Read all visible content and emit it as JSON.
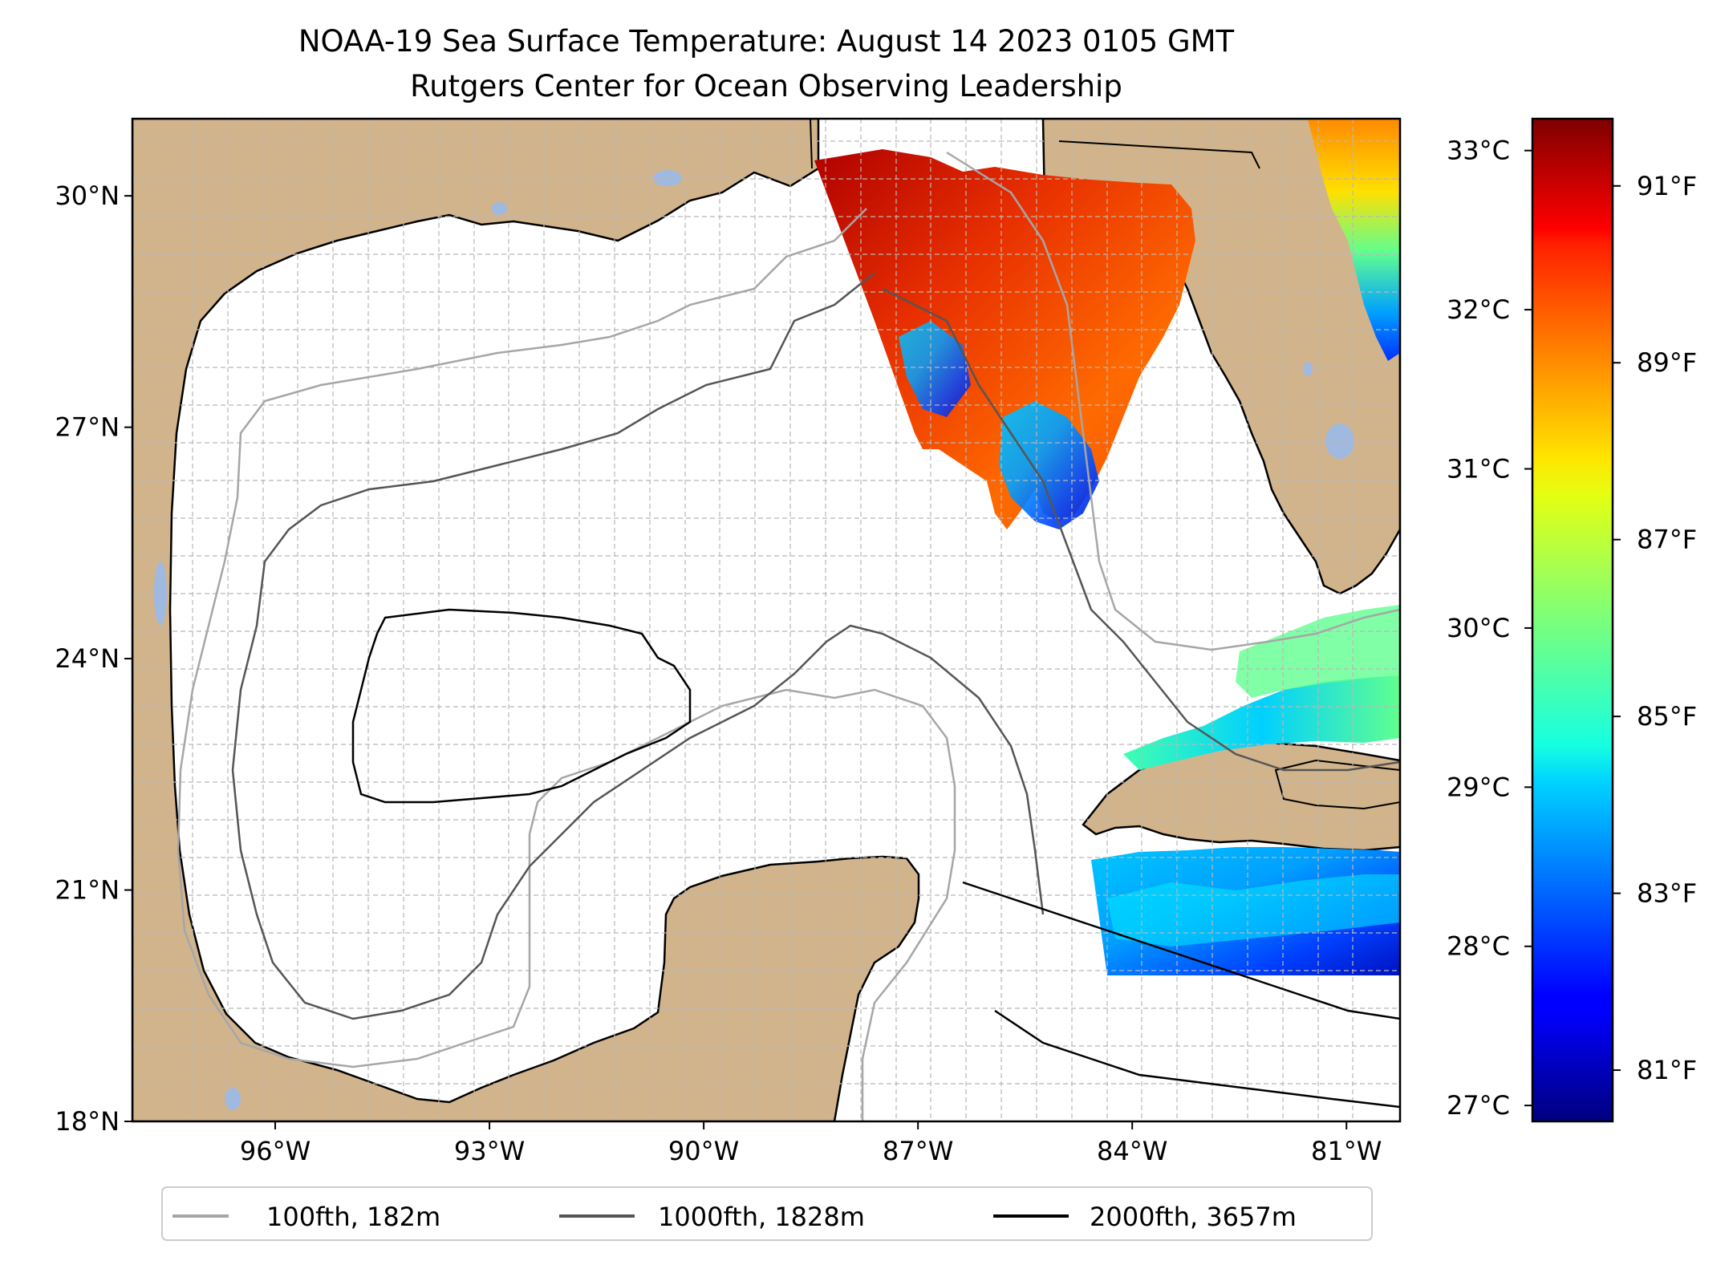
{
  "title": {
    "line1": "NOAA-19 Sea Surface Temperature: August 14 2023 0105 GMT",
    "line2": "Rutgers Center for Ocean Observing Leadership"
  },
  "colors": {
    "land": "#d2b48c",
    "lakes": "#9fb9e0",
    "iso100": "#a6a6a6",
    "iso1000": "#555555",
    "iso2000": "#000000",
    "grid": "#b8b8b8"
  },
  "map": {
    "lon_range": [
      -98.0,
      -80.25
    ],
    "lat_range": [
      18.0,
      31.0
    ],
    "lon_ticks": [
      {
        "value": -96,
        "label": "96°W"
      },
      {
        "value": -93,
        "label": "93°W"
      },
      {
        "value": -90,
        "label": "90°W"
      },
      {
        "value": -87,
        "label": "87°W"
      },
      {
        "value": -84,
        "label": "84°W"
      },
      {
        "value": -81,
        "label": "81°W"
      }
    ],
    "lat_ticks": [
      {
        "value": 18,
        "label": "18°N"
      },
      {
        "value": 21,
        "label": "21°N"
      },
      {
        "value": 24,
        "label": "24°N"
      },
      {
        "value": 27,
        "label": "27°N"
      },
      {
        "value": 30,
        "label": "30°N"
      }
    ],
    "gridlines": true
  },
  "legend": {
    "placement": "bottom-center",
    "items": [
      {
        "label": "100fth, 182m",
        "color": "#a6a6a6"
      },
      {
        "label": "1000fth, 1828m",
        "color": "#555555"
      },
      {
        "label": "2000fth, 3657m",
        "color": "#000000"
      }
    ]
  },
  "colorbar": {
    "colormap": "jet",
    "celsius_range": [
      26.9,
      33.2
    ],
    "celsius_ticks": [
      {
        "value": 27,
        "label": "27°C"
      },
      {
        "value": 28,
        "label": "28°C"
      },
      {
        "value": 29,
        "label": "29°C"
      },
      {
        "value": 30,
        "label": "30°C"
      },
      {
        "value": 31,
        "label": "31°C"
      },
      {
        "value": 32,
        "label": "32°C"
      },
      {
        "value": 33,
        "label": "33°C"
      }
    ],
    "fahrenheit_ticks": [
      {
        "value": 81,
        "label": "81°F"
      },
      {
        "value": 83,
        "label": "83°F"
      },
      {
        "value": 85,
        "label": "85°F"
      },
      {
        "value": 87,
        "label": "87°F"
      },
      {
        "value": 89,
        "label": "89°F"
      },
      {
        "value": 91,
        "label": "91°F"
      }
    ]
  }
}
